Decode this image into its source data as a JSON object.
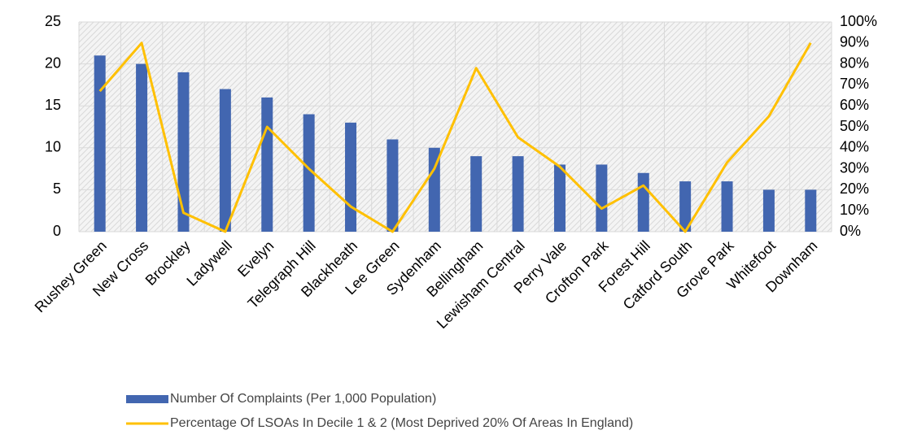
{
  "chart_data": {
    "type": "combo",
    "categories": [
      "Rushey Green",
      "New Cross",
      "Brockley",
      "Ladywell",
      "Evelyn",
      "Telegraph Hill",
      "Blackheath",
      "Lee Green",
      "Sydenham",
      "Bellingham",
      "Lewisham Central",
      "Perry Vale",
      "Crofton Park",
      "Forest Hill",
      "Catford South",
      "Grove Park",
      "Whitefoot",
      "Downham"
    ],
    "series": [
      {
        "name": "Number Of Complaints (Per 1,000 Population)",
        "type": "bar",
        "color": "#4266b0",
        "values": [
          21,
          20,
          19,
          17,
          16,
          14,
          13,
          11,
          10,
          9,
          9,
          8,
          8,
          7,
          6,
          6,
          5,
          5
        ]
      },
      {
        "name": "Percentage Of LSOAs In Decile 1 & 2 (Most Deprived 20% Of Areas In England)",
        "type": "line",
        "axis": "y2",
        "color": "#ffc000",
        "values": [
          67,
          90,
          9,
          0,
          50,
          30,
          12,
          0,
          30,
          78,
          45,
          31,
          11,
          22,
          0,
          33,
          55,
          90
        ]
      }
    ],
    "ylim": [
      0,
      25
    ],
    "yticks": [
      0,
      5,
      10,
      15,
      20,
      25
    ],
    "y2lim": [
      0,
      100
    ],
    "y2ticks": [
      {
        "value": 0,
        "label": "0%"
      },
      {
        "value": 10,
        "label": "10%"
      },
      {
        "value": 20,
        "label": "20%"
      },
      {
        "value": 30,
        "label": "30%"
      },
      {
        "value": 40,
        "label": "40%"
      },
      {
        "value": 50,
        "label": "50%"
      },
      {
        "value": 60,
        "label": "60%"
      },
      {
        "value": 70,
        "label": "70%"
      },
      {
        "value": 80,
        "label": "80%"
      },
      {
        "value": 90,
        "label": "90%"
      },
      {
        "value": 100,
        "label": "100%"
      }
    ],
    "grid": true,
    "legend": "bottom"
  }
}
